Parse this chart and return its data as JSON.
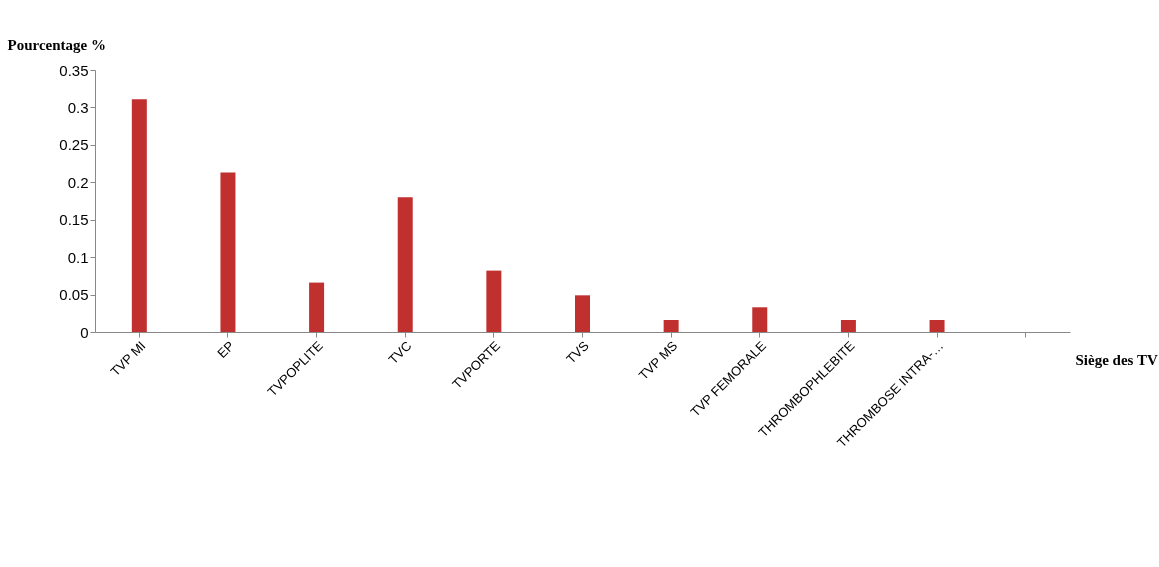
{
  "chart_data": {
    "type": "bar",
    "ylabel": "Pourcentage %",
    "xlabel": "Siège des TV",
    "categories": [
      "TVP MI",
      "EP",
      "TVPOPLITE",
      "TVC",
      "TVPORTE",
      "TVS",
      "TVP MS",
      "TVP FEMORALE",
      "THROMBOPHLEBITE",
      "THROMBOSE INTRA-…",
      null
    ],
    "values": [
      0.311,
      0.213,
      0.066,
      0.18,
      0.082,
      0.049,
      0.016,
      0.033,
      0.016,
      0.016,
      null
    ],
    "color": "#c0302f",
    "ylim": [
      0,
      0.35
    ],
    "yticks": [
      0,
      0.05,
      0.1,
      0.15,
      0.2,
      0.25,
      0.3,
      0.35
    ],
    "grid": false
  }
}
